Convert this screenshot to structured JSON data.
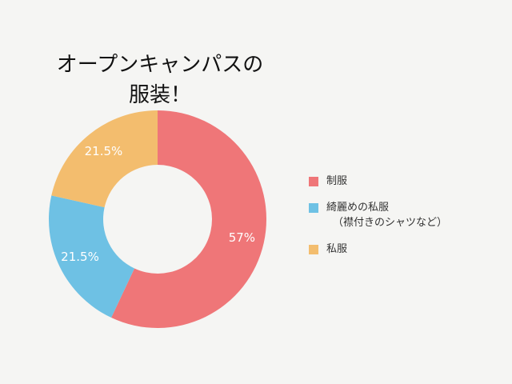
{
  "title": {
    "line1": "オープンキャンパスの",
    "line2": "服装！"
  },
  "chart_data": {
    "type": "pie",
    "donut": true,
    "slices": [
      {
        "label": "制服",
        "value": 57,
        "display": "57%",
        "color": "#ef7678"
      },
      {
        "label": "綺麗めの私服",
        "note": "（襟付きのシャツなど）",
        "value": 21.5,
        "display": "21.5%",
        "color": "#6ec1e4"
      },
      {
        "label": "私服",
        "value": 21.5,
        "display": "21.5%",
        "color": "#f3bd6e"
      }
    ],
    "start_angle": "top (12 o'clock)",
    "direction": "clockwise",
    "legend_position": "right"
  }
}
